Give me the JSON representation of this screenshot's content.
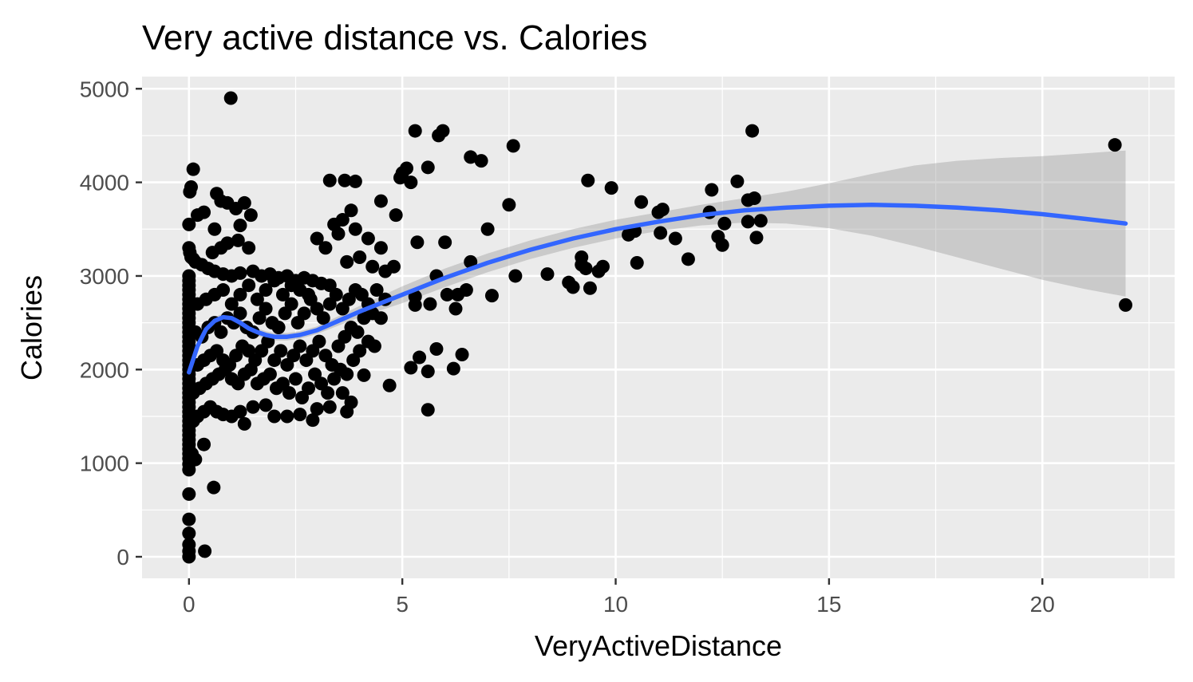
{
  "chart_data": {
    "type": "scatter",
    "title": "Very active distance vs. Calories",
    "xlabel": "VeryActiveDistance",
    "ylabel": "Calories",
    "xlim": [
      -1.1,
      23.1
    ],
    "ylim": [
      -230,
      5130
    ],
    "x_ticks": [
      0,
      5,
      10,
      15,
      20
    ],
    "x_tick_labels": [
      "0",
      "5",
      "10",
      "15",
      "20"
    ],
    "y_ticks": [
      0,
      1000,
      2000,
      3000,
      4000,
      5000
    ],
    "y_tick_labels": [
      "0",
      "1000",
      "2000",
      "3000",
      "4000",
      "5000"
    ],
    "grid": true,
    "legend": "none",
    "colors": {
      "panel": "#ebebeb",
      "grid_major": "#ffffff",
      "points": "#000000",
      "smooth_line": "#3366ff",
      "ribbon": "#999999"
    },
    "points": [
      [
        0.98,
        4900
      ],
      [
        0.1,
        4140
      ],
      [
        0.05,
        3950
      ],
      [
        0.02,
        3900
      ],
      [
        0.0,
        3550
      ],
      [
        0.2,
        3650
      ],
      [
        0.35,
        3680
      ],
      [
        0.65,
        3880
      ],
      [
        0.75,
        3800
      ],
      [
        0.9,
        3780
      ],
      [
        1.3,
        3780
      ],
      [
        1.1,
        3720
      ],
      [
        1.45,
        3650
      ],
      [
        1.2,
        3540
      ],
      [
        0.6,
        3500
      ],
      [
        0.9,
        3350
      ],
      [
        1.15,
        3380
      ],
      [
        1.4,
        3300
      ],
      [
        0.75,
        3300
      ],
      [
        0.55,
        3250
      ],
      [
        0.0,
        3300
      ],
      [
        0.02,
        3250
      ],
      [
        0.05,
        3200
      ],
      [
        0.1,
        3180
      ],
      [
        0.15,
        3150
      ],
      [
        0.3,
        3120
      ],
      [
        0.45,
        3080
      ],
      [
        0.6,
        3050
      ],
      [
        0.8,
        3020
      ],
      [
        1.0,
        3000
      ],
      [
        1.2,
        3030
      ],
      [
        1.5,
        3050
      ],
      [
        1.7,
        3000
      ],
      [
        1.9,
        3020
      ],
      [
        2.1,
        2980
      ],
      [
        2.3,
        3000
      ],
      [
        2.5,
        2950
      ],
      [
        2.7,
        2980
      ],
      [
        2.9,
        2950
      ],
      [
        3.1,
        2920
      ],
      [
        3.3,
        2900
      ],
      [
        0.0,
        3000
      ],
      [
        0.0,
        2950
      ],
      [
        0.0,
        2900
      ],
      [
        0.0,
        2850
      ],
      [
        0.0,
        2800
      ],
      [
        0.0,
        2750
      ],
      [
        0.0,
        2700
      ],
      [
        0.0,
        2650
      ],
      [
        0.0,
        2600
      ],
      [
        0.0,
        2550
      ],
      [
        0.0,
        2500
      ],
      [
        0.0,
        2450
      ],
      [
        0.0,
        2400
      ],
      [
        0.0,
        2350
      ],
      [
        0.0,
        2300
      ],
      [
        0.0,
        2250
      ],
      [
        0.0,
        2200
      ],
      [
        0.0,
        2150
      ],
      [
        0.0,
        2100
      ],
      [
        0.0,
        2050
      ],
      [
        0.0,
        2000
      ],
      [
        0.0,
        1950
      ],
      [
        0.0,
        1900
      ],
      [
        0.0,
        1850
      ],
      [
        0.0,
        1800
      ],
      [
        0.0,
        1750
      ],
      [
        0.0,
        1700
      ],
      [
        0.0,
        1650
      ],
      [
        0.0,
        1600
      ],
      [
        0.0,
        1550
      ],
      [
        0.0,
        1500
      ],
      [
        0.0,
        1450
      ],
      [
        0.0,
        1400
      ],
      [
        0.0,
        1350
      ],
      [
        0.0,
        1300
      ],
      [
        0.0,
        1250
      ],
      [
        0.0,
        1200
      ],
      [
        0.0,
        1150
      ],
      [
        0.0,
        1100
      ],
      [
        0.0,
        1050
      ],
      [
        0.0,
        990
      ],
      [
        0.0,
        930
      ],
      [
        0.0,
        670
      ],
      [
        0.0,
        400
      ],
      [
        0.0,
        250
      ],
      [
        0.0,
        130
      ],
      [
        0.0,
        60
      ],
      [
        0.0,
        0
      ],
      [
        0.37,
        60
      ],
      [
        0.58,
        740
      ],
      [
        0.15,
        1040
      ],
      [
        0.07,
        1100
      ],
      [
        0.35,
        1200
      ],
      [
        0.1,
        1450
      ],
      [
        0.2,
        1500
      ],
      [
        0.35,
        1550
      ],
      [
        0.5,
        1600
      ],
      [
        0.65,
        1550
      ],
      [
        0.8,
        1520
      ],
      [
        1.0,
        1500
      ],
      [
        1.3,
        1420
      ],
      [
        1.2,
        1550
      ],
      [
        1.5,
        1600
      ],
      [
        1.8,
        1620
      ],
      [
        2.0,
        1500
      ],
      [
        2.3,
        1500
      ],
      [
        2.6,
        1520
      ],
      [
        2.9,
        1460
      ],
      [
        3.0,
        1580
      ],
      [
        3.3,
        1600
      ],
      [
        3.7,
        1550
      ],
      [
        3.8,
        1650
      ],
      [
        3.6,
        1750
      ],
      [
        4.7,
        1830
      ],
      [
        5.6,
        1570
      ],
      [
        4.1,
        1940
      ],
      [
        5.2,
        2020
      ],
      [
        5.6,
        1980
      ],
      [
        6.2,
        2010
      ],
      [
        5.4,
        2130
      ],
      [
        5.8,
        2220
      ],
      [
        6.4,
        2160
      ],
      [
        0.1,
        1750
      ],
      [
        0.25,
        1800
      ],
      [
        0.4,
        1850
      ],
      [
        0.55,
        1900
      ],
      [
        0.7,
        1950
      ],
      [
        0.85,
        2000
      ],
      [
        1.0,
        1900
      ],
      [
        1.15,
        1850
      ],
      [
        1.3,
        1950
      ],
      [
        1.45,
        2000
      ],
      [
        1.6,
        1850
      ],
      [
        1.75,
        1900
      ],
      [
        1.9,
        1950
      ],
      [
        2.05,
        1800
      ],
      [
        2.2,
        1850
      ],
      [
        2.35,
        1750
      ],
      [
        2.5,
        1900
      ],
      [
        2.65,
        1700
      ],
      [
        2.8,
        1800
      ],
      [
        2.95,
        1950
      ],
      [
        3.1,
        1850
      ],
      [
        3.25,
        1750
      ],
      [
        3.4,
        1900
      ],
      [
        3.55,
        2000
      ],
      [
        3.7,
        1950
      ],
      [
        3.85,
        2100
      ],
      [
        4.0,
        2200
      ],
      [
        4.2,
        2300
      ],
      [
        4.35,
        2250
      ],
      [
        0.2,
        2050
      ],
      [
        0.35,
        2100
      ],
      [
        0.5,
        2150
      ],
      [
        0.65,
        2200
      ],
      [
        0.8,
        2100
      ],
      [
        0.95,
        2050
      ],
      [
        1.1,
        2150
      ],
      [
        1.25,
        2250
      ],
      [
        1.4,
        2200
      ],
      [
        1.55,
        2100
      ],
      [
        1.7,
        2200
      ],
      [
        1.85,
        2300
      ],
      [
        2.0,
        2100
      ],
      [
        2.15,
        2200
      ],
      [
        2.3,
        2050
      ],
      [
        2.45,
        2150
      ],
      [
        2.6,
        2250
      ],
      [
        2.75,
        2100
      ],
      [
        2.9,
        2200
      ],
      [
        3.05,
        2300
      ],
      [
        3.2,
        2150
      ],
      [
        3.35,
        2050
      ],
      [
        3.5,
        2250
      ],
      [
        3.65,
        2350
      ],
      [
        3.8,
        2450
      ],
      [
        3.95,
        2400
      ],
      [
        4.1,
        2550
      ],
      [
        4.3,
        2600
      ],
      [
        4.5,
        2550
      ],
      [
        0.15,
        2400
      ],
      [
        0.3,
        2350
      ],
      [
        0.45,
        2450
      ],
      [
        0.6,
        2500
      ],
      [
        0.75,
        2400
      ],
      [
        0.9,
        2550
      ],
      [
        1.05,
        2500
      ],
      [
        1.2,
        2600
      ],
      [
        1.35,
        2450
      ],
      [
        1.5,
        2400
      ],
      [
        1.65,
        2550
      ],
      [
        1.8,
        2650
      ],
      [
        1.95,
        2500
      ],
      [
        2.1,
        2450
      ],
      [
        2.25,
        2600
      ],
      [
        2.4,
        2700
      ],
      [
        2.55,
        2500
      ],
      [
        2.7,
        2600
      ],
      [
        2.85,
        2750
      ],
      [
        3.0,
        2650
      ],
      [
        3.15,
        2550
      ],
      [
        3.3,
        2700
      ],
      [
        3.45,
        2800
      ],
      [
        3.6,
        2650
      ],
      [
        3.75,
        2750
      ],
      [
        3.9,
        2850
      ],
      [
        4.05,
        2800
      ],
      [
        4.2,
        2700
      ],
      [
        4.4,
        2850
      ],
      [
        4.6,
        2750
      ],
      [
        0.2,
        2700
      ],
      [
        0.4,
        2750
      ],
      [
        0.6,
        2800
      ],
      [
        0.8,
        2850
      ],
      [
        1.0,
        2700
      ],
      [
        1.2,
        2800
      ],
      [
        1.4,
        2900
      ],
      [
        1.6,
        2750
      ],
      [
        1.8,
        2850
      ],
      [
        2.0,
        2950
      ],
      [
        2.2,
        2800
      ],
      [
        2.4,
        2900
      ],
      [
        2.6,
        2850
      ],
      [
        2.8,
        2800
      ],
      [
        3.0,
        3400
      ],
      [
        3.2,
        3300
      ],
      [
        3.4,
        3550
      ],
      [
        3.5,
        3450
      ],
      [
        3.6,
        3600
      ],
      [
        3.8,
        3700
      ],
      [
        3.9,
        3500
      ],
      [
        4.0,
        3200
      ],
      [
        4.2,
        3400
      ],
      [
        4.3,
        3100
      ],
      [
        4.5,
        3300
      ],
      [
        4.6,
        3050
      ],
      [
        4.8,
        3100
      ],
      [
        3.7,
        3150
      ],
      [
        3.3,
        4020
      ],
      [
        3.65,
        4020
      ],
      [
        3.9,
        4010
      ],
      [
        4.5,
        3800
      ],
      [
        4.85,
        3650
      ],
      [
        4.95,
        4050
      ],
      [
        5.0,
        4100
      ],
      [
        5.1,
        4150
      ],
      [
        5.2,
        4000
      ],
      [
        5.3,
        4550
      ],
      [
        5.85,
        4500
      ],
      [
        5.95,
        4550
      ],
      [
        5.6,
        4160
      ],
      [
        6.6,
        4270
      ],
      [
        6.85,
        4230
      ],
      [
        7.6,
        4390
      ],
      [
        7.5,
        3760
      ],
      [
        7.0,
        3500
      ],
      [
        6.0,
        3360
      ],
      [
        5.35,
        3360
      ],
      [
        5.8,
        3000
      ],
      [
        6.6,
        3150
      ],
      [
        5.3,
        2780
      ],
      [
        5.3,
        2690
      ],
      [
        5.65,
        2700
      ],
      [
        6.05,
        2800
      ],
      [
        6.3,
        2800
      ],
      [
        6.25,
        2650
      ],
      [
        6.5,
        2850
      ],
      [
        7.1,
        2790
      ],
      [
        7.65,
        3000
      ],
      [
        8.4,
        3020
      ],
      [
        8.9,
        2930
      ],
      [
        9.0,
        2880
      ],
      [
        9.2,
        3120
      ],
      [
        9.2,
        3200
      ],
      [
        9.4,
        2870
      ],
      [
        9.3,
        3080
      ],
      [
        9.6,
        3050
      ],
      [
        9.7,
        3100
      ],
      [
        9.35,
        4020
      ],
      [
        9.9,
        3940
      ],
      [
        10.3,
        3440
      ],
      [
        10.45,
        3480
      ],
      [
        10.5,
        3140
      ],
      [
        10.6,
        3790
      ],
      [
        11.0,
        3680
      ],
      [
        11.05,
        3460
      ],
      [
        11.1,
        3710
      ],
      [
        11.4,
        3400
      ],
      [
        11.7,
        3180
      ],
      [
        12.2,
        3680
      ],
      [
        12.25,
        3920
      ],
      [
        12.4,
        3420
      ],
      [
        12.5,
        3330
      ],
      [
        12.55,
        3560
      ],
      [
        12.85,
        4010
      ],
      [
        13.1,
        3580
      ],
      [
        13.1,
        3810
      ],
      [
        13.25,
        3830
      ],
      [
        13.2,
        4550
      ],
      [
        13.3,
        3410
      ],
      [
        13.4,
        3590
      ],
      [
        21.7,
        4400
      ],
      [
        21.95,
        2690
      ]
    ],
    "smooth_line": {
      "x": [
        0.0,
        0.2,
        0.4,
        0.6,
        0.8,
        1.0,
        1.2,
        1.4,
        1.6,
        1.8,
        2.0,
        2.3,
        2.6,
        3.0,
        3.5,
        4.0,
        5.0,
        6.0,
        7.0,
        8.0,
        9.0,
        10.0,
        11.0,
        12.0,
        13.0,
        14.0,
        15.0,
        16.0,
        17.0,
        18.0,
        19.0,
        20.0,
        21.0,
        21.95
      ],
      "y": [
        1970,
        2250,
        2430,
        2520,
        2560,
        2550,
        2500,
        2440,
        2400,
        2370,
        2350,
        2350,
        2370,
        2420,
        2520,
        2620,
        2800,
        2980,
        3140,
        3280,
        3400,
        3500,
        3580,
        3650,
        3700,
        3730,
        3750,
        3760,
        3750,
        3730,
        3700,
        3660,
        3610,
        3560
      ]
    },
    "confidence_band": {
      "x": [
        0.0,
        0.2,
        0.4,
        0.6,
        0.8,
        1.0,
        1.2,
        1.4,
        1.6,
        1.8,
        2.0,
        2.3,
        2.6,
        3.0,
        3.5,
        4.0,
        5.0,
        6.0,
        7.0,
        8.0,
        9.0,
        10.0,
        11.0,
        12.0,
        13.0,
        14.0,
        15.0,
        16.0,
        17.0,
        18.0,
        19.0,
        20.0,
        21.0,
        21.95
      ],
      "lower": [
        1920,
        2210,
        2390,
        2480,
        2520,
        2510,
        2460,
        2400,
        2360,
        2330,
        2310,
        2310,
        2330,
        2380,
        2470,
        2560,
        2710,
        2880,
        3040,
        3180,
        3300,
        3400,
        3480,
        3540,
        3570,
        3560,
        3510,
        3430,
        3320,
        3200,
        3080,
        2960,
        2860,
        2780
      ],
      "upper": [
        2020,
        2290,
        2470,
        2560,
        2600,
        2590,
        2540,
        2480,
        2440,
        2410,
        2390,
        2390,
        2410,
        2460,
        2570,
        2680,
        2890,
        3080,
        3240,
        3380,
        3500,
        3600,
        3680,
        3760,
        3830,
        3900,
        3990,
        4090,
        4180,
        4230,
        4260,
        4280,
        4310,
        4340
      ]
    }
  }
}
